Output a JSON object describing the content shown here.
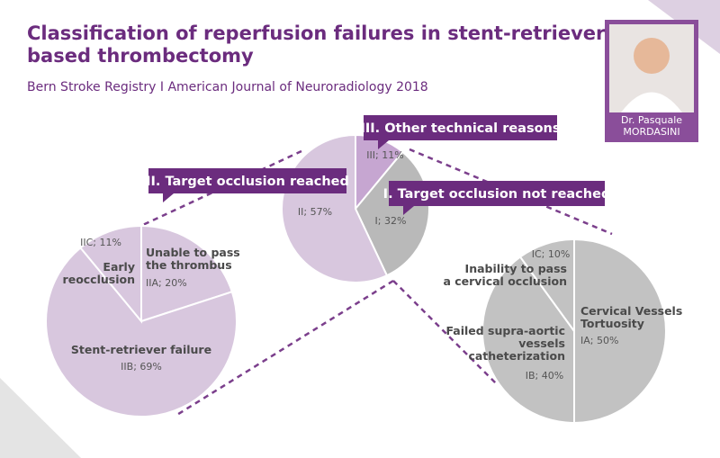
{
  "header": {
    "title": "Classification of reperfusion failures in stent-retriever\nbased thrombectomy",
    "subtitle": "Bern Stroke Registry I American Journal of Neuroradiology 2018"
  },
  "portrait": {
    "caption": "Dr. Pasquale\nMORDASINI"
  },
  "chart_data": [
    {
      "type": "pie",
      "categories": [
        "III. Other technical reasons",
        "I. Target occlusion not reached",
        "II. Target occlusion reached"
      ],
      "values": [
        11,
        32,
        57
      ],
      "value_labels": [
        "III; 11%",
        "I; 32%",
        "II; 57%"
      ],
      "colors": [
        "#c6a6d1",
        "#b9b9b9",
        "#d8c7de"
      ]
    },
    {
      "type": "pie",
      "categories": [
        "Unable to pass\nthe thrombus",
        "Stent-retriever failure",
        "Early\nreocclusion"
      ],
      "values": [
        20,
        69,
        11
      ],
      "value_labels": [
        "IIA; 20%",
        "IIB; 69%",
        "IIC; 11%"
      ],
      "color": "#d8c7de"
    },
    {
      "type": "pie",
      "categories": [
        "Cervical Vessels\nTortuosity",
        "Failed supra-aortic\nvessels\ncatheterization",
        "Inability to pass\na cervical occlusion"
      ],
      "values": [
        50,
        40,
        10
      ],
      "value_labels": [
        "IA; 50%",
        "IB; 40%",
        "IC; 10%"
      ],
      "color": "#c2c2c2"
    }
  ]
}
